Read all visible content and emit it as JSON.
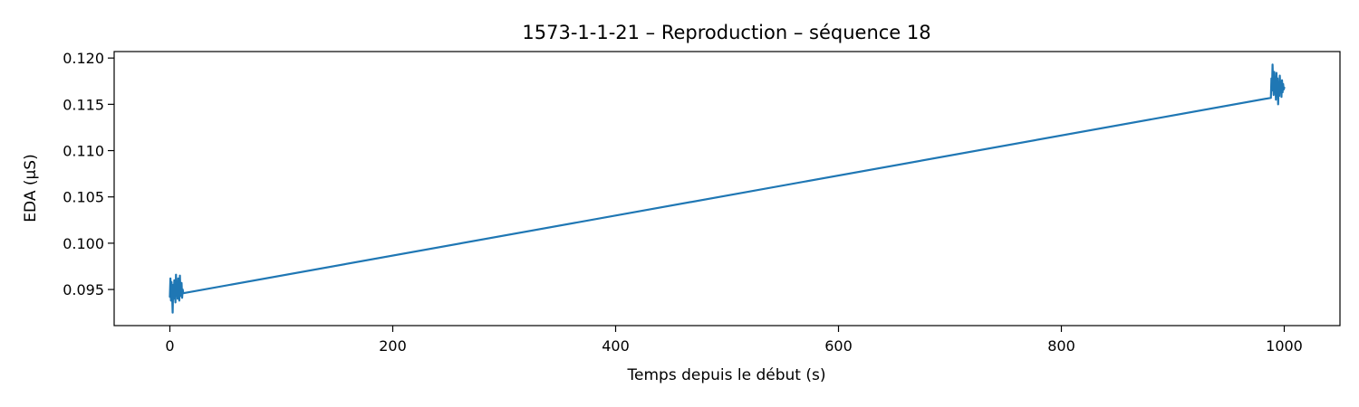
{
  "chart_data": {
    "type": "line",
    "title": "1573-1-1-21 – Reproduction – séquence 18",
    "xlabel": "Temps depuis le début (s)",
    "ylabel": "EDA (µS)",
    "xlim": [
      -50,
      1050
    ],
    "ylim": [
      0.0911,
      0.1207
    ],
    "xticks": [
      0,
      200,
      400,
      600,
      800,
      1000
    ],
    "xtick_labels": [
      "0",
      "200",
      "400",
      "600",
      "800",
      "1000"
    ],
    "yticks": [
      0.095,
      0.1,
      0.105,
      0.11,
      0.115,
      0.12
    ],
    "ytick_labels": [
      "0.095",
      "0.100",
      "0.105",
      "0.110",
      "0.115",
      "0.120"
    ],
    "grid": false,
    "series": [
      {
        "color": "#1f77b4",
        "x": [
          0.0,
          0.5,
          1.0,
          1.5,
          2.0,
          2.5,
          3.0,
          3.5,
          4.0,
          4.5,
          5.0,
          5.5,
          6.0,
          6.5,
          7.0,
          7.5,
          8.0,
          8.5,
          9.0,
          9.5,
          10.0,
          10.5,
          11.0,
          11.5,
          12.0,
          988.0,
          988.5,
          989.0,
          989.5,
          990.0,
          990.5,
          991.0,
          991.5,
          992.0,
          992.5,
          993.0,
          993.5,
          994.0,
          994.5,
          995.0,
          995.5,
          996.0,
          996.5,
          997.0,
          997.5,
          998.0,
          998.5,
          999.0,
          999.5,
          1000.0
        ],
        "y": [
          0.0942,
          0.0962,
          0.0938,
          0.0958,
          0.0945,
          0.0925,
          0.0955,
          0.094,
          0.096,
          0.0948,
          0.0936,
          0.0966,
          0.0944,
          0.0952,
          0.094,
          0.0962,
          0.0946,
          0.0938,
          0.0965,
          0.0947,
          0.0943,
          0.0957,
          0.0941,
          0.095,
          0.0946,
          0.1157,
          0.1178,
          0.1165,
          0.1193,
          0.1172,
          0.116,
          0.1185,
          0.1168,
          0.1176,
          0.1155,
          0.1184,
          0.1163,
          0.1178,
          0.115,
          0.117,
          0.1159,
          0.1181,
          0.1166,
          0.1174,
          0.1158,
          0.1176,
          0.1163,
          0.1172,
          0.1166,
          0.1168
        ]
      }
    ]
  }
}
